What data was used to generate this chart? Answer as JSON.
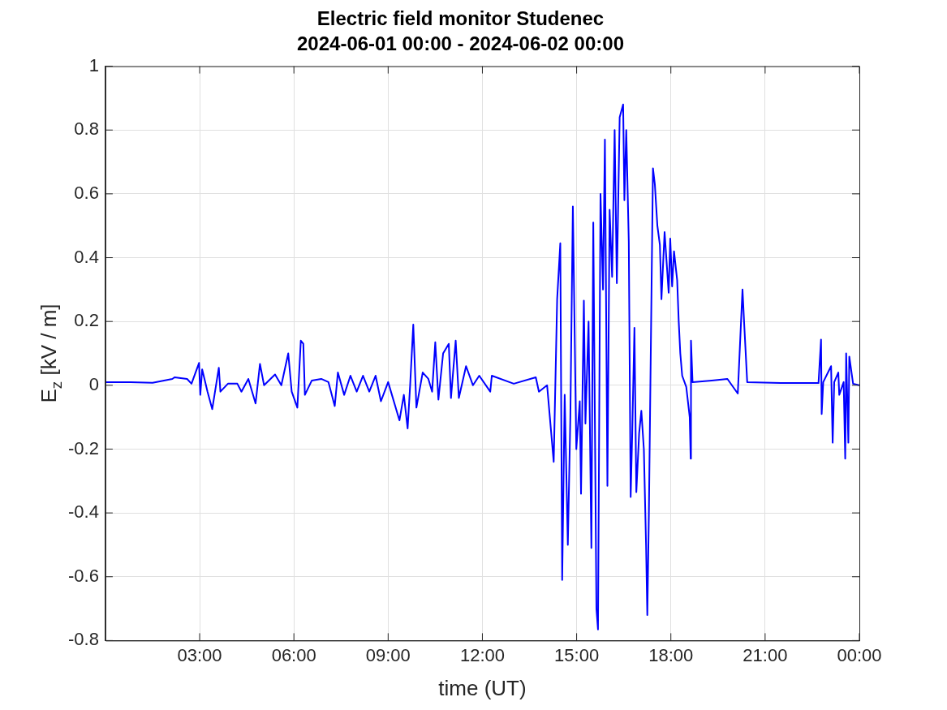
{
  "chart_data": {
    "type": "line",
    "title": "Electric field monitor Studenec",
    "subtitle": "2024-06-01 00:00 - 2024-06-02 00:00",
    "xlabel": "time (UT)",
    "ylabel": "E$_{z}$ [kV / m]",
    "x": [
      0,
      0.8,
      1.5,
      2.13,
      2.2,
      2.6,
      2.74,
      2.98,
      3.02,
      3.08,
      3.25,
      3.4,
      3.61,
      3.66,
      3.9,
      4.2,
      4.33,
      4.55,
      4.78,
      4.92,
      5.05,
      5.4,
      5.6,
      5.82,
      5.93,
      6.11,
      6.22,
      6.3,
      6.35,
      6.57,
      6.87,
      7.1,
      7.3,
      7.4,
      7.6,
      7.8,
      8.0,
      8.2,
      8.4,
      8.6,
      8.77,
      9.0,
      9.36,
      9.5,
      9.62,
      9.7,
      9.8,
      9.9,
      10.1,
      10.28,
      10.4,
      10.5,
      10.6,
      10.75,
      10.93,
      11.0,
      11.15,
      11.25,
      11.48,
      11.7,
      11.9,
      12.25,
      12.3,
      13.0,
      13.7,
      13.8,
      14.06,
      14.27,
      14.38,
      14.48,
      14.54,
      14.62,
      14.72,
      14.8,
      14.88,
      14.99,
      15.1,
      15.14,
      15.23,
      15.28,
      15.38,
      15.47,
      15.53,
      15.63,
      15.68,
      15.76,
      15.84,
      15.9,
      15.98,
      16.05,
      16.13,
      16.21,
      16.28,
      16.37,
      16.48,
      16.52,
      16.58,
      16.66,
      16.72,
      16.77,
      16.84,
      16.9,
      16.99,
      17.06,
      17.14,
      17.21,
      17.25,
      17.3,
      17.36,
      17.43,
      17.49,
      17.57,
      17.65,
      17.7,
      17.8,
      17.93,
      17.98,
      18.04,
      18.1,
      18.2,
      18.25,
      18.3,
      18.36,
      18.49,
      18.6,
      18.63,
      18.64,
      18.69,
      19.3,
      19.8,
      20.13,
      20.28,
      20.33,
      20.43,
      21.5,
      22.7,
      22.78,
      22.8,
      22.85,
      23.1,
      23.15,
      23.2,
      23.33,
      23.36,
      23.5,
      23.55,
      23.58,
      23.65,
      23.68,
      23.8,
      24
    ],
    "values": [
      0.01,
      0.01,
      0.008,
      0.02,
      0.025,
      0.02,
      0.005,
      0.07,
      -0.03,
      0.05,
      -0.02,
      -0.075,
      0.055,
      -0.02,
      0.005,
      0.005,
      -0.02,
      0.02,
      -0.057,
      0.067,
      0,
      0.034,
      0,
      0.1,
      -0.02,
      -0.07,
      0.14,
      0.13,
      -0.03,
      0.015,
      0.02,
      0.01,
      -0.065,
      0.04,
      -0.03,
      0.03,
      -0.02,
      0.03,
      -0.02,
      0.03,
      -0.05,
      0.01,
      -0.11,
      -0.03,
      -0.135,
      0,
      0.19,
      -0.07,
      0.04,
      0.02,
      -0.02,
      0.135,
      -0.045,
      0.1,
      0.13,
      -0.04,
      0.14,
      -0.04,
      0.06,
      0,
      0.03,
      -0.02,
      0.03,
      0.005,
      0.025,
      -0.02,
      0,
      -0.24,
      0.27,
      0.445,
      -0.61,
      -0.03,
      -0.5,
      -0.1,
      0.56,
      -0.2,
      -0.05,
      -0.34,
      0.265,
      -0.12,
      0.2,
      -0.51,
      0.51,
      -0.7,
      -0.765,
      0.6,
      0.3,
      0.77,
      -0.315,
      0.55,
      0.34,
      0.8,
      0.32,
      0.84,
      0.88,
      0.58,
      0.8,
      0.45,
      -0.35,
      -0.15,
      0.18,
      -0.335,
      -0.15,
      -0.08,
      -0.2,
      -0.5,
      -0.72,
      -0.4,
      0.1,
      0.68,
      0.63,
      0.5,
      0.44,
      0.27,
      0.48,
      0.29,
      0.46,
      0.31,
      0.42,
      0.33,
      0.2,
      0.1,
      0.03,
      -0.005,
      -0.1,
      -0.23,
      0.14,
      0.01,
      0.015,
      0.02,
      -0.026,
      0.3,
      0.2,
      0.01,
      0.007,
      0.007,
      0.143,
      -0.09,
      0.01,
      0.06,
      -0.18,
      0.01,
      0.04,
      -0.03,
      0.01,
      -0.23,
      0.1,
      -0.18,
      0.09,
      0.005,
      0
    ],
    "color": "#0000ff",
    "line_style": "solid",
    "grid": true,
    "xlim": [
      0,
      24
    ],
    "xticks": [
      {
        "value": 3,
        "label": "03:00"
      },
      {
        "value": 6,
        "label": "06:00"
      },
      {
        "value": 9,
        "label": "09:00"
      },
      {
        "value": 12,
        "label": "12:00"
      },
      {
        "value": 15,
        "label": "15:00"
      },
      {
        "value": 18,
        "label": "18:00"
      },
      {
        "value": 21,
        "label": "21:00"
      },
      {
        "value": 24,
        "label": "00:00"
      }
    ],
    "ylim": [
      -0.8,
      1
    ],
    "yticks": [
      -0.8,
      -0.6,
      -0.4,
      -0.2,
      0,
      0.2,
      0.4,
      0.6,
      0.8,
      1
    ]
  }
}
